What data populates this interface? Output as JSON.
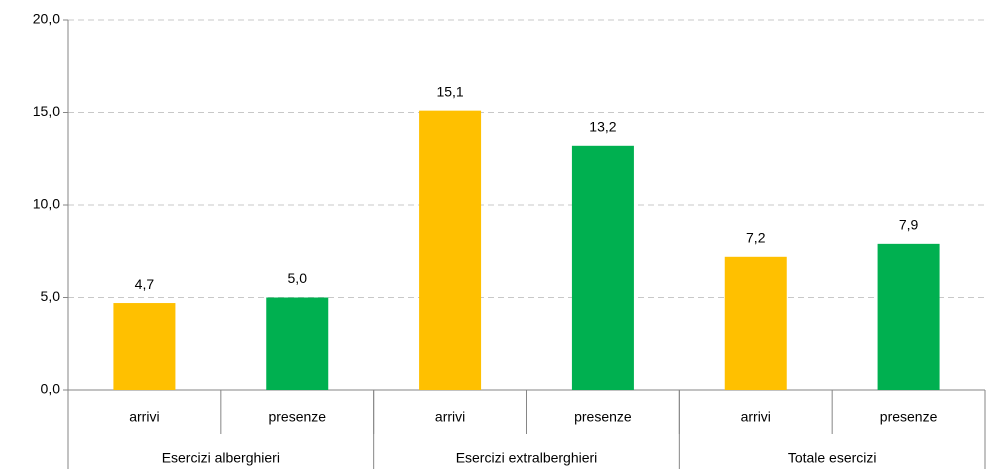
{
  "chart_data": {
    "type": "bar",
    "categories": [
      "arrivi",
      "presenze",
      "arrivi",
      "presenze",
      "arrivi",
      "presenze"
    ],
    "groups": [
      "Esercizi alberghieri",
      "Esercizi extralberghieri",
      "Totale esercizi"
    ],
    "values": [
      4.7,
      5.0,
      15.1,
      13.2,
      7.2,
      7.9
    ],
    "value_labels": [
      "4,7",
      "5,0",
      "15,1",
      "13,2",
      "7,2",
      "7,9"
    ],
    "colors": [
      "#ffc000",
      "#00b050",
      "#ffc000",
      "#00b050",
      "#ffc000",
      "#00b050"
    ],
    "ylim": [
      0,
      20
    ],
    "yticks": [
      {
        "value": 0,
        "label": "0,0"
      },
      {
        "value": 5,
        "label": "5,0"
      },
      {
        "value": 10,
        "label": "10,0"
      },
      {
        "value": 15,
        "label": "15,0"
      },
      {
        "value": 20,
        "label": "20,0"
      }
    ],
    "grid": true
  }
}
